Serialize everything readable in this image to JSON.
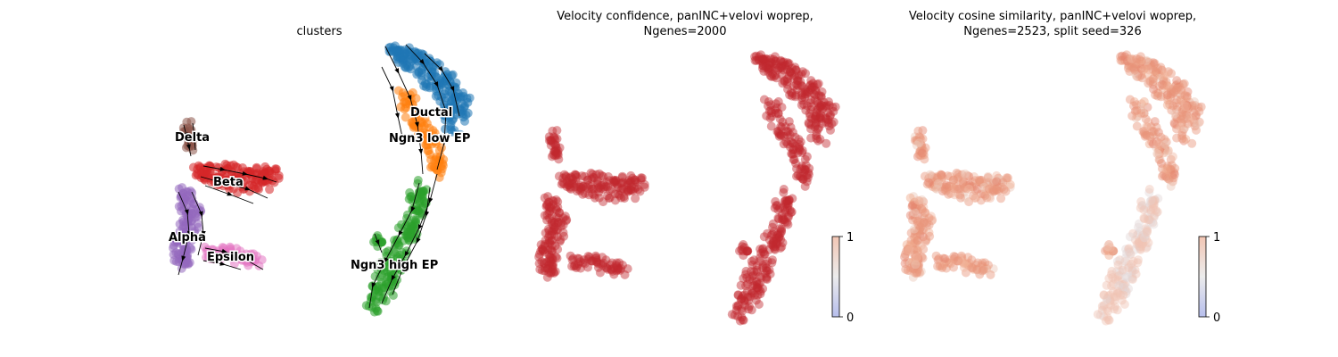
{
  "panels": [
    {
      "title_line1": "clusters",
      "title_line2": ""
    },
    {
      "title_line1": "Velocity confidence, panINC+velovi woprep,",
      "title_line2": "Ngenes=2000"
    },
    {
      "title_line1": "Velocity cosine similarity, panINC+velovi woprep,",
      "title_line2": "Ngenes=2523, split seed=326"
    }
  ],
  "chart_data": [
    {
      "type": "scatter",
      "title": "clusters",
      "xlabel": "",
      "ylabel": "",
      "grid": false,
      "cluster_labels": [
        "Delta",
        "Beta",
        "Alpha",
        "Epsilon",
        "Ductal",
        "Ngn3 low EP",
        "Ngn3 high EP"
      ],
      "cluster_colors": {
        "Delta": "#8c564b",
        "Beta": "#d62728",
        "Alpha": "#9467bd",
        "Epsilon": "#e377c2",
        "Ductal": "#1f77b4",
        "Ngn3 low EP": "#ff7f0e",
        "Ngn3 high EP": "#2ca02c"
      },
      "overlay": "velocity streamlines with arrows"
    },
    {
      "type": "scatter",
      "title": "Velocity confidence, panINC+velovi woprep, Ngenes=2000",
      "colormap": "coolwarm",
      "colorbar_ticks": [
        "0",
        "1"
      ],
      "clim": [
        0,
        1
      ],
      "point_color": "#c0282f"
    },
    {
      "type": "scatter",
      "title": "Velocity cosine similarity, panINC+velovi woprep, Ngenes=2523, split seed=326",
      "colormap": "coolwarm",
      "colorbar_ticks": [
        "0",
        "1"
      ],
      "clim": [
        0,
        1
      ],
      "point_color": "#e8957a"
    }
  ]
}
